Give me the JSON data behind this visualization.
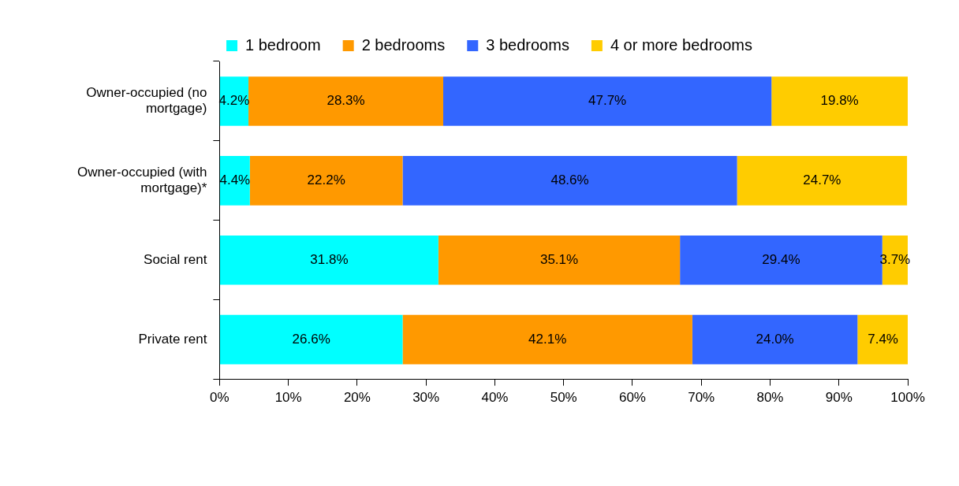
{
  "chart_data": {
    "type": "bar",
    "orientation": "horizontal",
    "stacked": true,
    "categories": [
      "Owner-occupied (no mortgage)",
      "Owner-occupied (with mortgage)*",
      "Social rent",
      "Private rent"
    ],
    "series": [
      {
        "name": "1 bedroom",
        "color": "#00ffff",
        "values": [
          4.2,
          4.4,
          31.8,
          26.6
        ],
        "value_labels": [
          "4.2%",
          "4.4%",
          "31.8%",
          "26.6%"
        ]
      },
      {
        "name": "2 bedrooms",
        "color": "#ff9900",
        "values": [
          28.3,
          22.2,
          35.1,
          42.1
        ],
        "value_labels": [
          "28.3%",
          "22.2%",
          "35.1%",
          "42.1%"
        ]
      },
      {
        "name": "3 bedrooms",
        "color": "#3366ff",
        "values": [
          47.7,
          48.6,
          29.4,
          24.0
        ],
        "value_labels": [
          "47.7%",
          "48.6%",
          "29.4%",
          "24.0%"
        ]
      },
      {
        "name": "4 or more bedrooms",
        "color": "#ffcc00",
        "values": [
          19.8,
          24.7,
          3.7,
          7.4
        ],
        "value_labels": [
          "19.8%",
          "24.7%",
          "3.7%",
          "7.4%"
        ]
      }
    ],
    "xlim": [
      0,
      100
    ],
    "xticks": [
      {
        "value": 0,
        "label": "0%"
      },
      {
        "value": 10,
        "label": "10%"
      },
      {
        "value": 20,
        "label": "20%"
      },
      {
        "value": 30,
        "label": "30%"
      },
      {
        "value": 40,
        "label": "40%"
      },
      {
        "value": 50,
        "label": "50%"
      },
      {
        "value": 60,
        "label": "60%"
      },
      {
        "value": 70,
        "label": "70%"
      },
      {
        "value": 80,
        "label": "80%"
      },
      {
        "value": 90,
        "label": "90%"
      },
      {
        "value": 100,
        "label": "100%"
      }
    ],
    "grid": false,
    "legend": "top"
  }
}
